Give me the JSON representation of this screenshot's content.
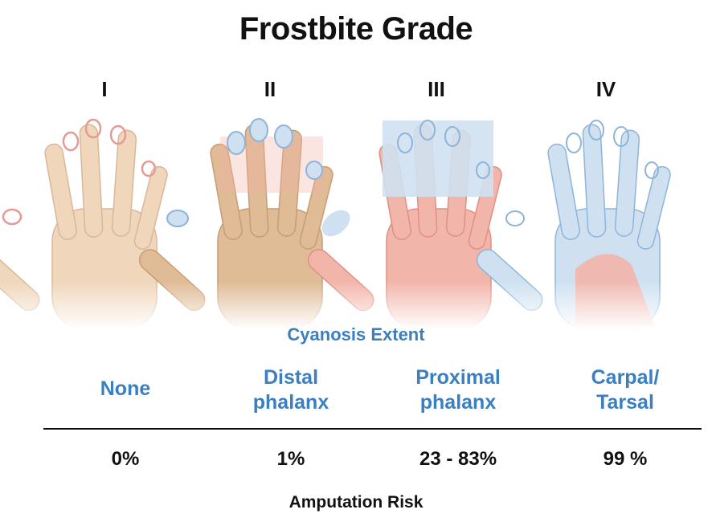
{
  "title": "Frostbite Grade",
  "cyanosis_label": "Cyanosis Extent",
  "risk_label": "Amputation Risk",
  "colors": {
    "skin": "#f0d6bb",
    "skin_dark": "#dfbb96",
    "flush": "#f2b5aa",
    "cyanosis": "#cfe1f1",
    "outline_blue": "#8fb4d9",
    "text_blue": "#3a7fc1"
  },
  "grades": [
    {
      "numeral": "I",
      "extent_lines": [
        "None"
      ],
      "risk": "0%"
    },
    {
      "numeral": "II",
      "extent_lines": [
        "Distal",
        "phalanx"
      ],
      "risk": "1%"
    },
    {
      "numeral": "III",
      "extent_lines": [
        "Proximal",
        "phalanx"
      ],
      "risk": "23 - 83%"
    },
    {
      "numeral": "IV",
      "extent_lines": [
        "Carpal/",
        "Tarsal"
      ],
      "risk": "99 %"
    }
  ]
}
